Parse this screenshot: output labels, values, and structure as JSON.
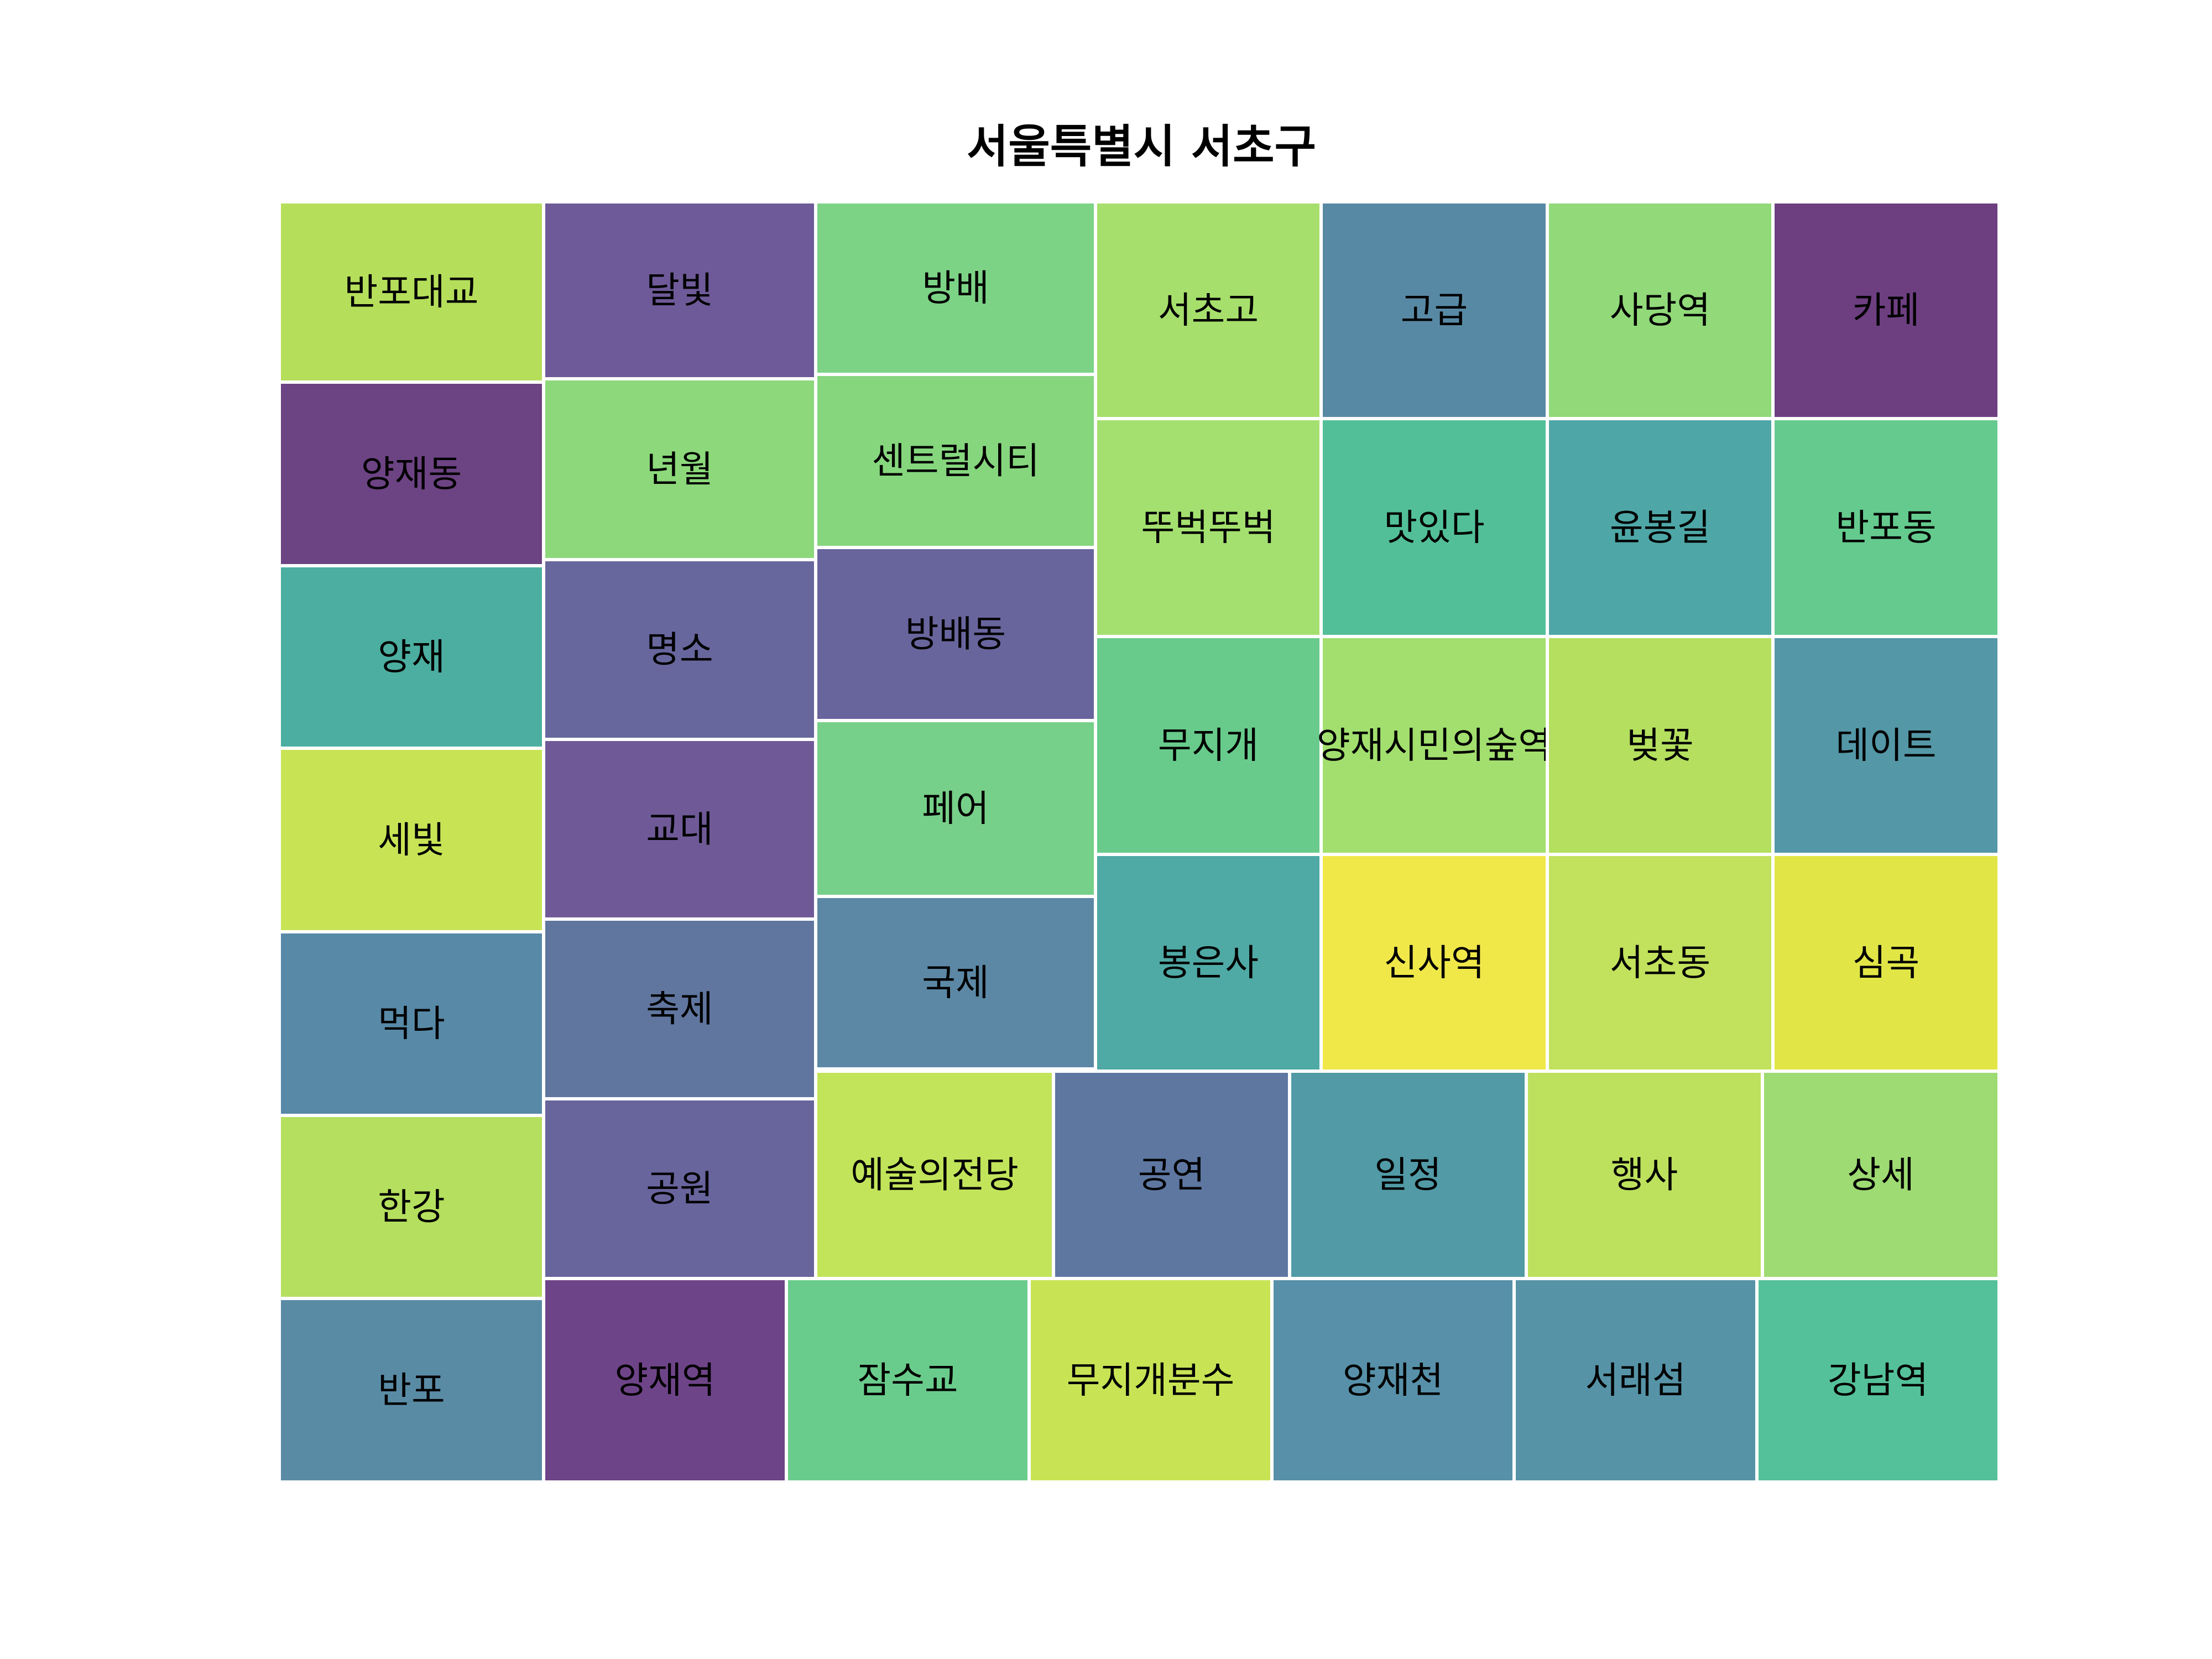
{
  "chart_data": {
    "type": "treemap",
    "title": "서울특별시 서초구",
    "items": [
      {
        "label": "반포대교",
        "color": "#b5de5b"
      },
      {
        "label": "양재동",
        "color": "#6c4383"
      },
      {
        "label": "양재",
        "color": "#4caea0"
      },
      {
        "label": "세빛",
        "color": "#c8e455"
      },
      {
        "label": "먹다",
        "color": "#5889a7"
      },
      {
        "label": "한강",
        "color": "#b5df5e"
      },
      {
        "label": "반포",
        "color": "#5a8ba5"
      },
      {
        "label": "달빛",
        "color": "#6e5a98"
      },
      {
        "label": "년월",
        "color": "#8cd87b"
      },
      {
        "label": "명소",
        "color": "#67679e"
      },
      {
        "label": "교대",
        "color": "#6f5a97"
      },
      {
        "label": "축제",
        "color": "#60769f"
      },
      {
        "label": "공원",
        "color": "#68649c"
      },
      {
        "label": "방배",
        "color": "#7cd386"
      },
      {
        "label": "센트럴시티",
        "color": "#86d67e"
      },
      {
        "label": "방배동",
        "color": "#68659d"
      },
      {
        "label": "페어",
        "color": "#77d089"
      },
      {
        "label": "국제",
        "color": "#5c88a5"
      },
      {
        "label": "서초고",
        "color": "#a6df6c"
      },
      {
        "label": "고급",
        "color": "#5889a4"
      },
      {
        "label": "사당역",
        "color": "#91d979"
      },
      {
        "label": "카페",
        "color": "#6d3f81"
      },
      {
        "label": "뚜벅뚜벅",
        "color": "#a4e06f"
      },
      {
        "label": "맛있다",
        "color": "#52bf99"
      },
      {
        "label": "윤봉길",
        "color": "#4ea7a6"
      },
      {
        "label": "반포동",
        "color": "#65ca8e"
      },
      {
        "label": "무지개",
        "color": "#68cb8b"
      },
      {
        "label": "양재시민의숲역",
        "color": "#a2df6e"
      },
      {
        "label": "벚꽃",
        "color": "#b4df5f"
      },
      {
        "label": "데이트",
        "color": "#5497a6"
      },
      {
        "label": "봉은사",
        "color": "#4fa9a4"
      },
      {
        "label": "신사역",
        "color": "#f0e849"
      },
      {
        "label": "서초동",
        "color": "#c2e15c"
      },
      {
        "label": "심곡",
        "color": "#e1e646"
      },
      {
        "label": "예술의전당",
        "color": "#c2e45a"
      },
      {
        "label": "공연",
        "color": "#5e77a1"
      },
      {
        "label": "일정",
        "color": "#519aa6"
      },
      {
        "label": "행사",
        "color": "#bde15d"
      },
      {
        "label": "상세",
        "color": "#9edb73"
      },
      {
        "label": "양재역",
        "color": "#6e4488"
      },
      {
        "label": "잠수교",
        "color": "#6acc8c"
      },
      {
        "label": "무지개분수",
        "color": "#c8e455"
      },
      {
        "label": "양재천",
        "color": "#5790a8"
      },
      {
        "label": "서래섬",
        "color": "#5693a7"
      },
      {
        "label": "강남역",
        "color": "#55c19a"
      }
    ]
  }
}
